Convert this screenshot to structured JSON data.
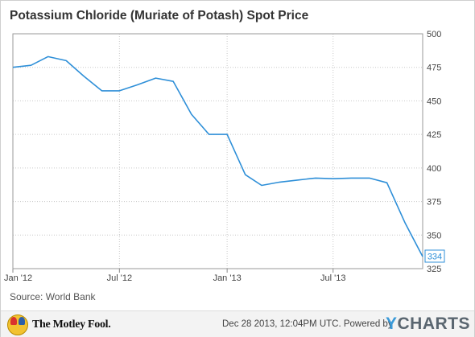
{
  "chart_data": {
    "type": "line",
    "title": "Potassium Chloride (Muriate of Potash) Spot Price",
    "xlabel": "",
    "ylabel": "",
    "x_ticks": [
      {
        "label": "Jan '12",
        "date": "2012-01-01"
      },
      {
        "label": "Jul '12",
        "date": "2012-07-01"
      },
      {
        "label": "Jan '13",
        "date": "2013-01-01"
      },
      {
        "label": "Jul '13",
        "date": "2013-07-01"
      }
    ],
    "xlim": [
      "2012-01-01",
      "2013-12-01"
    ],
    "ylim": [
      325,
      500
    ],
    "y_ticks": [
      325,
      350,
      375,
      400,
      425,
      450,
      475,
      500
    ],
    "y_axis_side": "right",
    "grid": {
      "horizontal": true,
      "vertical": true,
      "style": "dotted"
    },
    "line_color": "#2e8fd8",
    "last_value_label": "334",
    "series": [
      {
        "x": [
          "2012-01-01",
          "2012-02-01",
          "2012-03-01",
          "2012-04-01",
          "2012-05-01",
          "2012-06-01",
          "2012-07-01",
          "2012-08-01",
          "2012-09-01",
          "2012-10-01",
          "2012-11-01",
          "2012-12-01",
          "2013-01-01",
          "2013-02-01",
          "2013-03-01",
          "2013-04-01",
          "2013-05-01",
          "2013-06-01",
          "2013-07-01",
          "2013-08-01",
          "2013-09-01",
          "2013-10-01",
          "2013-11-01",
          "2013-12-01"
        ],
        "values": [
          475,
          476.5,
          483,
          480,
          468.5,
          457.5,
          457.5,
          462,
          467,
          464.5,
          440,
          425,
          425,
          395,
          387,
          389.5,
          391,
          392.5,
          392,
          392.5,
          392.5,
          389,
          359,
          334
        ]
      }
    ]
  },
  "source": "Source: World Bank",
  "footer": {
    "brand": "The Motley Fool.",
    "timestamp": "Dec 28 2013, 12:04PM UTC.  Powered by",
    "ycharts_y": "Y",
    "ycharts_rest": "CHARTS"
  }
}
